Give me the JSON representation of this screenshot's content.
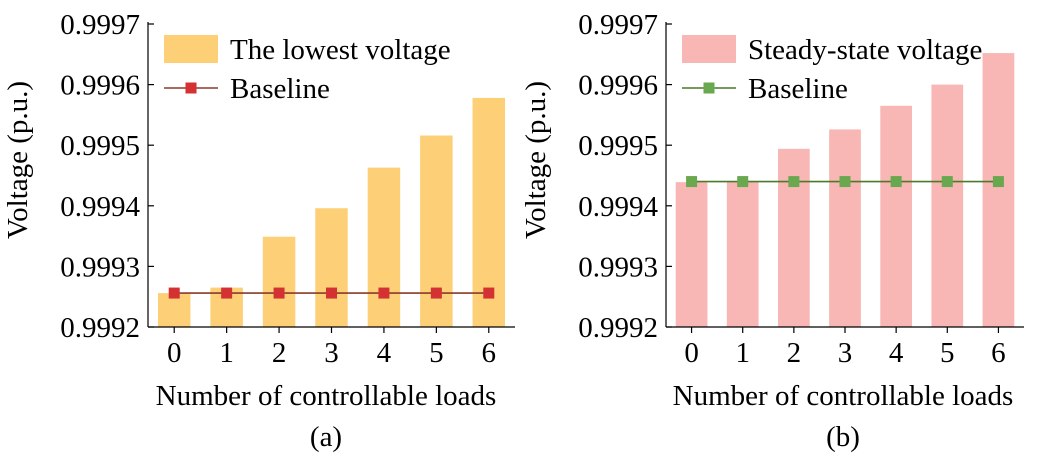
{
  "chart_data": [
    {
      "type": "bar",
      "panel_label": "(a)",
      "xlabel": "Number of controllable loads",
      "ylabel": "Voltage (p.u.)",
      "categories": [
        "0",
        "1",
        "2",
        "3",
        "4",
        "5",
        "6"
      ],
      "ylim": [
        0.9992,
        0.9997
      ],
      "yticks": [
        "0.9992",
        "0.9993",
        "0.9994",
        "0.9995",
        "0.9996",
        "0.9997"
      ],
      "series": [
        {
          "name": "The lowest voltage",
          "kind": "bar",
          "color": "#fdd078",
          "values": [
            0.999256,
            0.999265,
            0.999349,
            0.999396,
            0.999463,
            0.999516,
            0.999578
          ]
        },
        {
          "name": "Baseline",
          "kind": "line-marker",
          "color": "#d43232",
          "line_color": "#8a3a2a",
          "values": [
            0.999256,
            0.999256,
            0.999256,
            0.999256,
            0.999256,
            0.999256,
            0.999256
          ]
        }
      ],
      "legend_position": "top-left",
      "grid": false
    },
    {
      "type": "bar",
      "panel_label": "(b)",
      "xlabel": "Number of controllable loads",
      "ylabel": "Voltage (p.u.)",
      "categories": [
        "0",
        "1",
        "2",
        "3",
        "4",
        "5",
        "6"
      ],
      "ylim": [
        0.9992,
        0.9997
      ],
      "yticks": [
        "0.9992",
        "0.9993",
        "0.9994",
        "0.9995",
        "0.9996",
        "0.9997"
      ],
      "series": [
        {
          "name": "Steady-state voltage",
          "kind": "bar",
          "color": "#f8b6b4",
          "values": [
            0.999439,
            0.99944,
            0.999494,
            0.999526,
            0.999565,
            0.9996,
            0.999652
          ]
        },
        {
          "name": "Baseline",
          "kind": "line-marker",
          "color": "#6aa84f",
          "line_color": "#4a7a2a",
          "values": [
            0.99944,
            0.99944,
            0.99944,
            0.99944,
            0.99944,
            0.99944,
            0.99944
          ]
        }
      ],
      "legend_position": "top-left",
      "grid": false
    }
  ]
}
